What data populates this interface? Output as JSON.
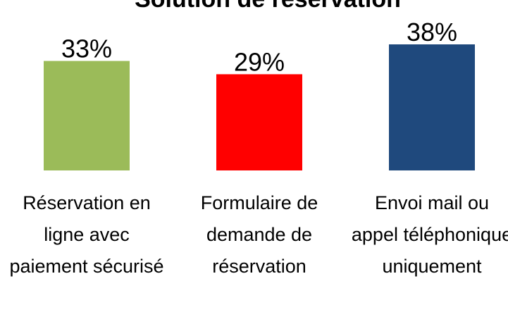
{
  "chart_data": {
    "type": "bar",
    "title": "Solution de réservation",
    "categories": [
      "Réservation en ligne avec paiement sécurisé",
      "Formulaire de demande de réservation",
      "Envoi mail ou appel téléphonique uniquement"
    ],
    "values": [
      33,
      29,
      38
    ],
    "value_labels": [
      "33%",
      "29%",
      "38%"
    ],
    "colors": [
      "#9bbb59",
      "#ff0000",
      "#1f497d"
    ]
  }
}
